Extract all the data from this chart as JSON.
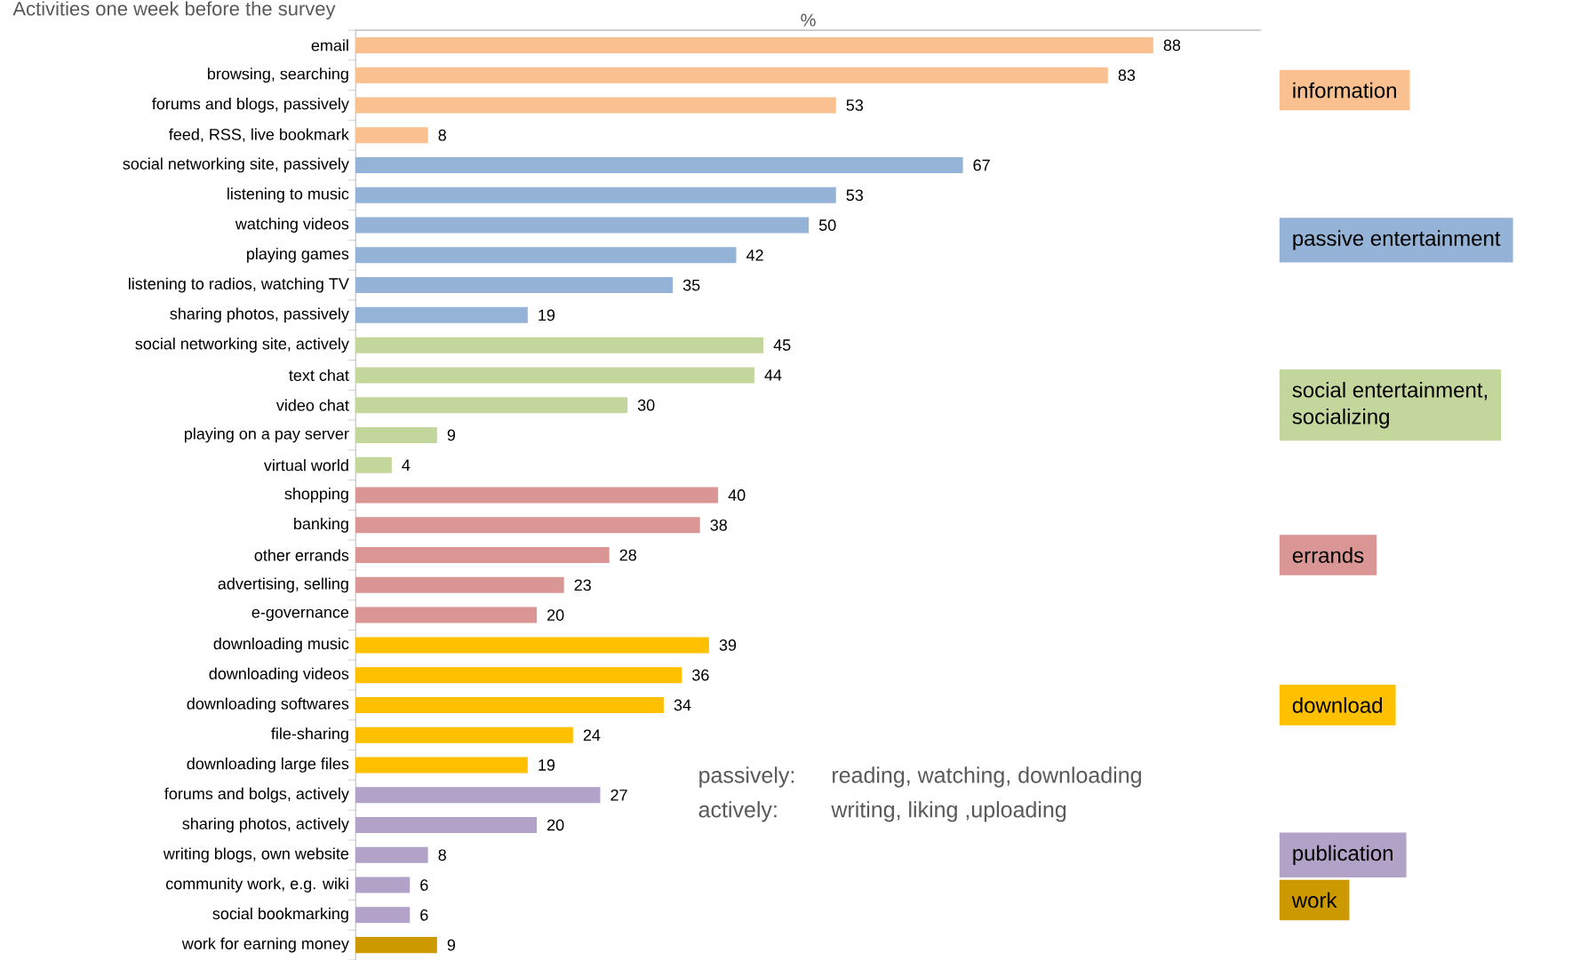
{
  "chart_data": {
    "type": "bar",
    "orientation": "horizontal",
    "title": "Activities one week before the survey",
    "xlabel": "%",
    "categories": [
      "email",
      "browsing, searching",
      "forums and blogs, passively",
      "feed, RSS, live bookmark",
      "social networking site, passively",
      "listening to music",
      "watching videos",
      "playing games",
      "listening to radios, watching TV",
      "sharing photos, passively",
      "social networking site, actively",
      "text chat",
      "video chat",
      "playing on a pay server",
      "virtual world",
      "shopping",
      "banking",
      "other errands",
      "advertising, selling",
      "e-governance",
      "downloading music",
      "downloading videos",
      "downloading softwares",
      "file-sharing",
      "downloading large files",
      "forums and bolgs, actively",
      "sharing photos, actively",
      "writing blogs, own website",
      "community work, e.g. wiki",
      "social bookmarking",
      "work for earning money"
    ],
    "series": [
      {
        "name": "information",
        "color": "#fac090",
        "values": [
          88,
          83,
          53,
          8,
          null,
          null,
          null,
          null,
          null,
          null,
          null,
          null,
          null,
          null,
          null,
          null,
          null,
          null,
          null,
          null,
          null,
          null,
          null,
          null,
          null,
          null,
          null,
          null,
          null,
          null,
          null
        ]
      },
      {
        "name": "passive entertainment",
        "color": "#95b3d7",
        "values": [
          null,
          null,
          null,
          null,
          67,
          53,
          50,
          42,
          35,
          19,
          null,
          null,
          null,
          null,
          null,
          null,
          null,
          null,
          null,
          null,
          null,
          null,
          null,
          null,
          null,
          null,
          null,
          null,
          null,
          null,
          null
        ]
      },
      {
        "name": "social entertainment, socializing",
        "color": "#c3d69b",
        "values": [
          null,
          null,
          null,
          null,
          null,
          null,
          null,
          null,
          null,
          null,
          45,
          44,
          30,
          9,
          4,
          null,
          null,
          null,
          null,
          null,
          null,
          null,
          null,
          null,
          null,
          null,
          null,
          null,
          null,
          null,
          null
        ]
      },
      {
        "name": "errands",
        "color": "#d99694",
        "values": [
          null,
          null,
          null,
          null,
          null,
          null,
          null,
          null,
          null,
          null,
          null,
          null,
          null,
          null,
          null,
          40,
          38,
          28,
          23,
          20,
          null,
          null,
          null,
          null,
          null,
          null,
          null,
          null,
          null,
          null,
          null
        ]
      },
      {
        "name": "download",
        "color": "#ffc000",
        "values": [
          null,
          null,
          null,
          null,
          null,
          null,
          null,
          null,
          null,
          null,
          null,
          null,
          null,
          null,
          null,
          null,
          null,
          null,
          null,
          null,
          39,
          36,
          34,
          24,
          19,
          null,
          null,
          null,
          null,
          null,
          null
        ]
      },
      {
        "name": "publication",
        "color": "#b3a2c7",
        "values": [
          null,
          null,
          null,
          null,
          null,
          null,
          null,
          null,
          null,
          null,
          null,
          null,
          null,
          null,
          null,
          null,
          null,
          null,
          null,
          null,
          null,
          null,
          null,
          null,
          null,
          27,
          20,
          8,
          6,
          6,
          null
        ]
      },
      {
        "name": "work",
        "color": "#cc9900",
        "values": [
          null,
          null,
          null,
          null,
          null,
          null,
          null,
          null,
          null,
          null,
          null,
          null,
          null,
          null,
          null,
          null,
          null,
          null,
          null,
          null,
          null,
          null,
          null,
          null,
          null,
          null,
          null,
          null,
          null,
          null,
          9
        ]
      }
    ],
    "annotations": [
      "passively:",
      "reading, watching, downloading",
      "actively:",
      "writing, liking ,uploading"
    ],
    "data_labels": true,
    "legend": "right",
    "tick_labels": "y"
  }
}
